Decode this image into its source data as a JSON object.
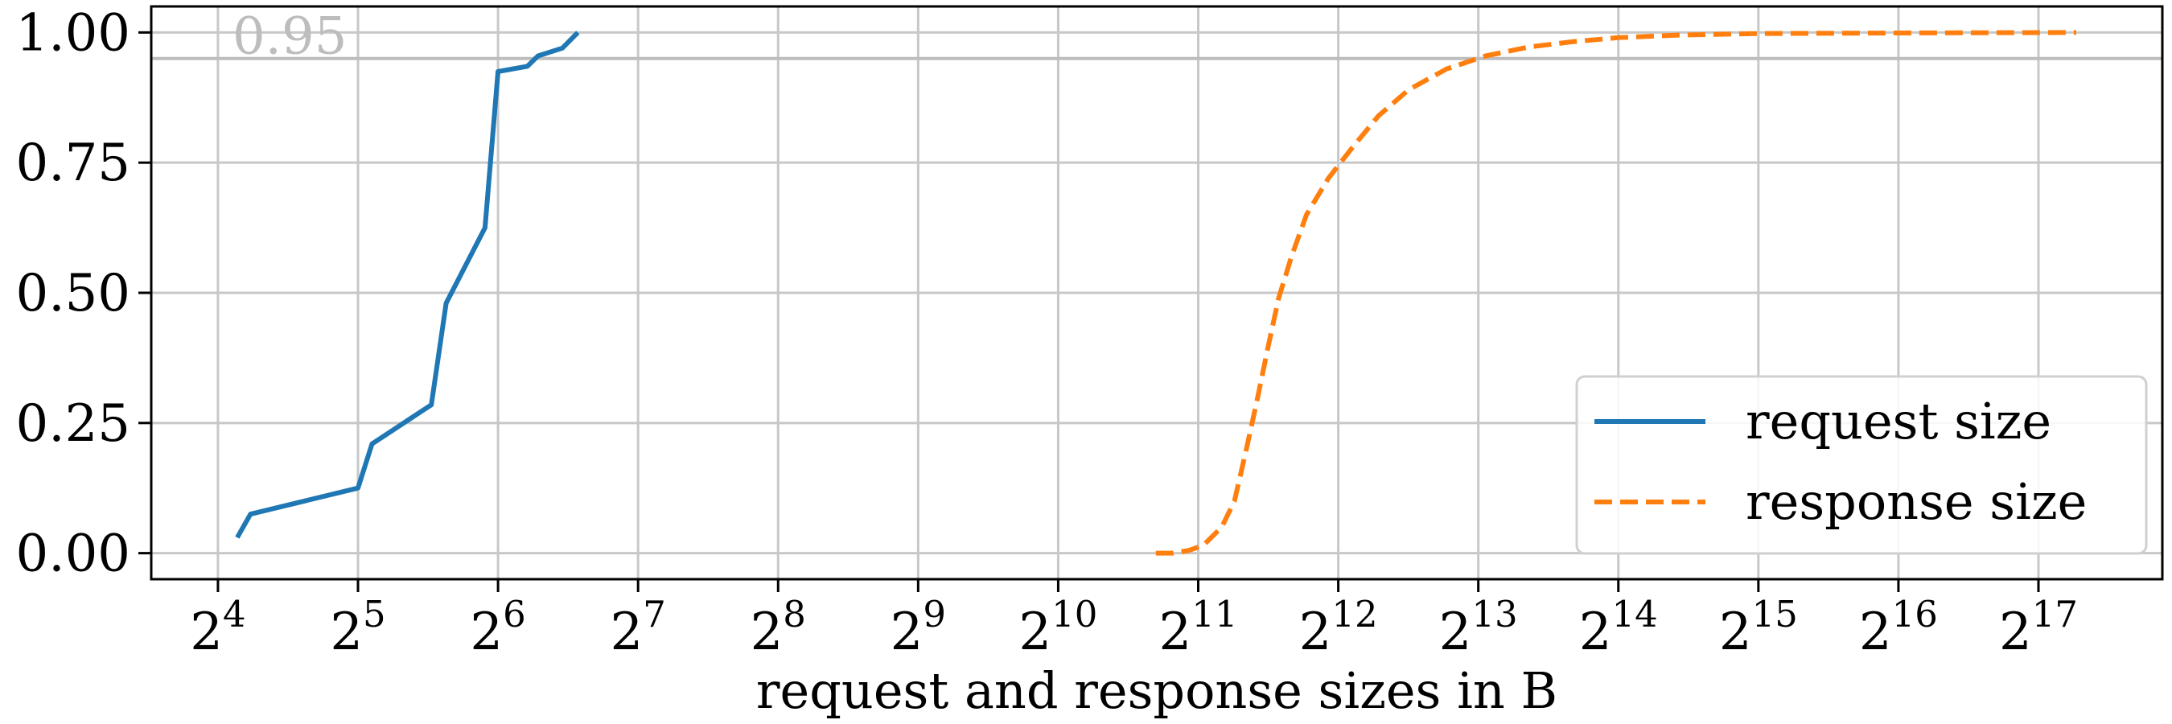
{
  "chart_data": {
    "type": "line",
    "xlabel": "request and response sizes in B",
    "ylabel": "",
    "x_scale": "log2",
    "xlim": [
      11.5,
      242000
    ],
    "ylim": [
      -0.05,
      1.05
    ],
    "x_ticks": [
      {
        "base": "2",
        "exp": "4",
        "value": 16
      },
      {
        "base": "2",
        "exp": "5",
        "value": 32
      },
      {
        "base": "2",
        "exp": "6",
        "value": 64
      },
      {
        "base": "2",
        "exp": "7",
        "value": 128
      },
      {
        "base": "2",
        "exp": "8",
        "value": 256
      },
      {
        "base": "2",
        "exp": "9",
        "value": 512
      },
      {
        "base": "2",
        "exp": "10",
        "value": 1024
      },
      {
        "base": "2",
        "exp": "11",
        "value": 2048
      },
      {
        "base": "2",
        "exp": "12",
        "value": 4096
      },
      {
        "base": "2",
        "exp": "13",
        "value": 8192
      },
      {
        "base": "2",
        "exp": "14",
        "value": 16384
      },
      {
        "base": "2",
        "exp": "15",
        "value": 32768
      },
      {
        "base": "2",
        "exp": "16",
        "value": 65536
      },
      {
        "base": "2",
        "exp": "17",
        "value": 131072
      }
    ],
    "y_ticks": [
      {
        "label": "0.00",
        "value": 0
      },
      {
        "label": "0.25",
        "value": 0.25
      },
      {
        "label": "0.50",
        "value": 0.5
      },
      {
        "label": "0.75",
        "value": 0.75
      },
      {
        "label": "1.00",
        "value": 1
      }
    ],
    "grid": true,
    "reference_line": {
      "y": 0.95,
      "label": "0.95",
      "color": "#bdbdbd"
    },
    "legend_position": "lower-right",
    "series": [
      {
        "name": "request size",
        "color": "#1f77b4",
        "style": "solid",
        "points": [
          [
            17.6,
            0.03
          ],
          [
            18.8,
            0.075
          ],
          [
            32,
            0.125
          ],
          [
            34.3,
            0.21
          ],
          [
            46,
            0.285
          ],
          [
            49.5,
            0.48
          ],
          [
            60,
            0.625
          ],
          [
            64,
            0.925
          ],
          [
            74,
            0.935
          ],
          [
            78,
            0.955
          ],
          [
            88,
            0.97
          ],
          [
            95,
            1.0
          ]
        ]
      },
      {
        "name": "response size",
        "color": "#ff7f0e",
        "style": "dashed",
        "points": [
          [
            1660,
            0.0
          ],
          [
            1800,
            0.0
          ],
          [
            1950,
            0.005
          ],
          [
            2100,
            0.015
          ],
          [
            2300,
            0.05
          ],
          [
            2450,
            0.1
          ],
          [
            2600,
            0.2
          ],
          [
            2750,
            0.3
          ],
          [
            2900,
            0.4
          ],
          [
            3050,
            0.49
          ],
          [
            3250,
            0.57
          ],
          [
            3500,
            0.65
          ],
          [
            3900,
            0.72
          ],
          [
            4400,
            0.78
          ],
          [
            5000,
            0.84
          ],
          [
            5800,
            0.89
          ],
          [
            7000,
            0.93
          ],
          [
            8500,
            0.955
          ],
          [
            10500,
            0.972
          ],
          [
            13000,
            0.982
          ],
          [
            16384,
            0.99
          ],
          [
            22000,
            0.995
          ],
          [
            32768,
            0.998
          ],
          [
            65536,
            0.999
          ],
          [
            158000,
            1.0
          ]
        ]
      }
    ]
  }
}
